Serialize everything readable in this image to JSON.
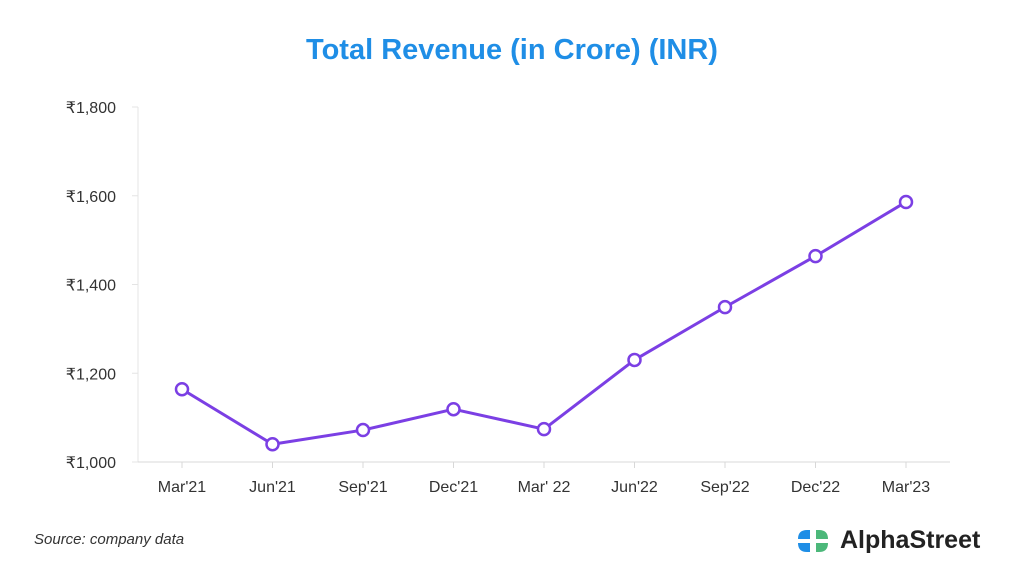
{
  "chart_data": {
    "type": "line",
    "title": "Total Revenue (in Crore) (INR)",
    "xlabel": "",
    "ylabel": "",
    "categories": [
      "Mar'21",
      "Jun'21",
      "Sep'21",
      "Dec'21",
      "Mar' 22",
      "Jun'22",
      "Sep'22",
      "Dec'22",
      "Mar'23"
    ],
    "series": [
      {
        "name": "Total Revenue",
        "values": [
          1164,
          1040,
          1072,
          1119,
          1074,
          1230,
          1349,
          1464,
          1586
        ]
      }
    ],
    "ylim": [
      1000,
      1800
    ],
    "yticks": [
      1000,
      1200,
      1400,
      1600,
      1800
    ],
    "ytick_labels": [
      "₹1,000",
      "₹1,200",
      "₹1,400",
      "₹1,600",
      "₹1,800"
    ],
    "grid": false,
    "line_color": "#7b3fe4"
  },
  "footer": {
    "source": "Source: company data",
    "brand": "AlphaStreet"
  },
  "colors": {
    "title": "#1f8ee6",
    "logo_blue": "#1f8ee6",
    "logo_green": "#4cb87a"
  }
}
